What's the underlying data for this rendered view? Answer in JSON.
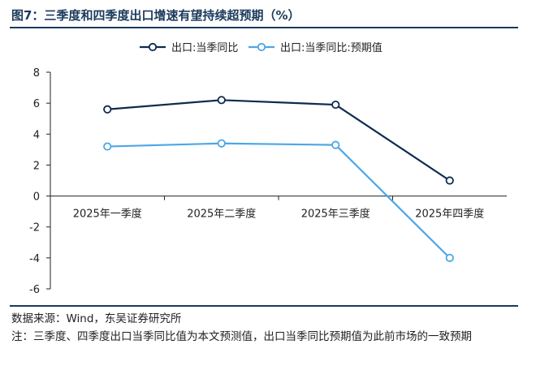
{
  "figure": {
    "title": "图7：三季度和四季度出口增速有望持续超预期（%）",
    "source": "数据来源：Wind，东吴证券研究所",
    "note": "注：三季度、四季度出口当季同比值为本文预测值，出口当季同比预期值为此前市场的一致预期"
  },
  "colors": {
    "accent": "#1b3a5c",
    "series1": "#0d2b4e",
    "series2": "#4da6e8"
  },
  "chart_data": {
    "type": "line",
    "categories": [
      "2025年一季度",
      "2025年二季度",
      "2025年三季度",
      "2025年四季度"
    ],
    "series": [
      {
        "name": "出口:当季同比",
        "values": [
          5.6,
          6.2,
          5.9,
          1.0
        ]
      },
      {
        "name": "出口:当季同比:预期值",
        "values": [
          3.2,
          3.4,
          3.3,
          -4.0
        ]
      }
    ],
    "ylim": [
      -6,
      8
    ],
    "yticks": [
      8,
      6,
      4,
      2,
      0,
      -2,
      -4,
      -6
    ],
    "grid": false,
    "legend": "top-center"
  }
}
